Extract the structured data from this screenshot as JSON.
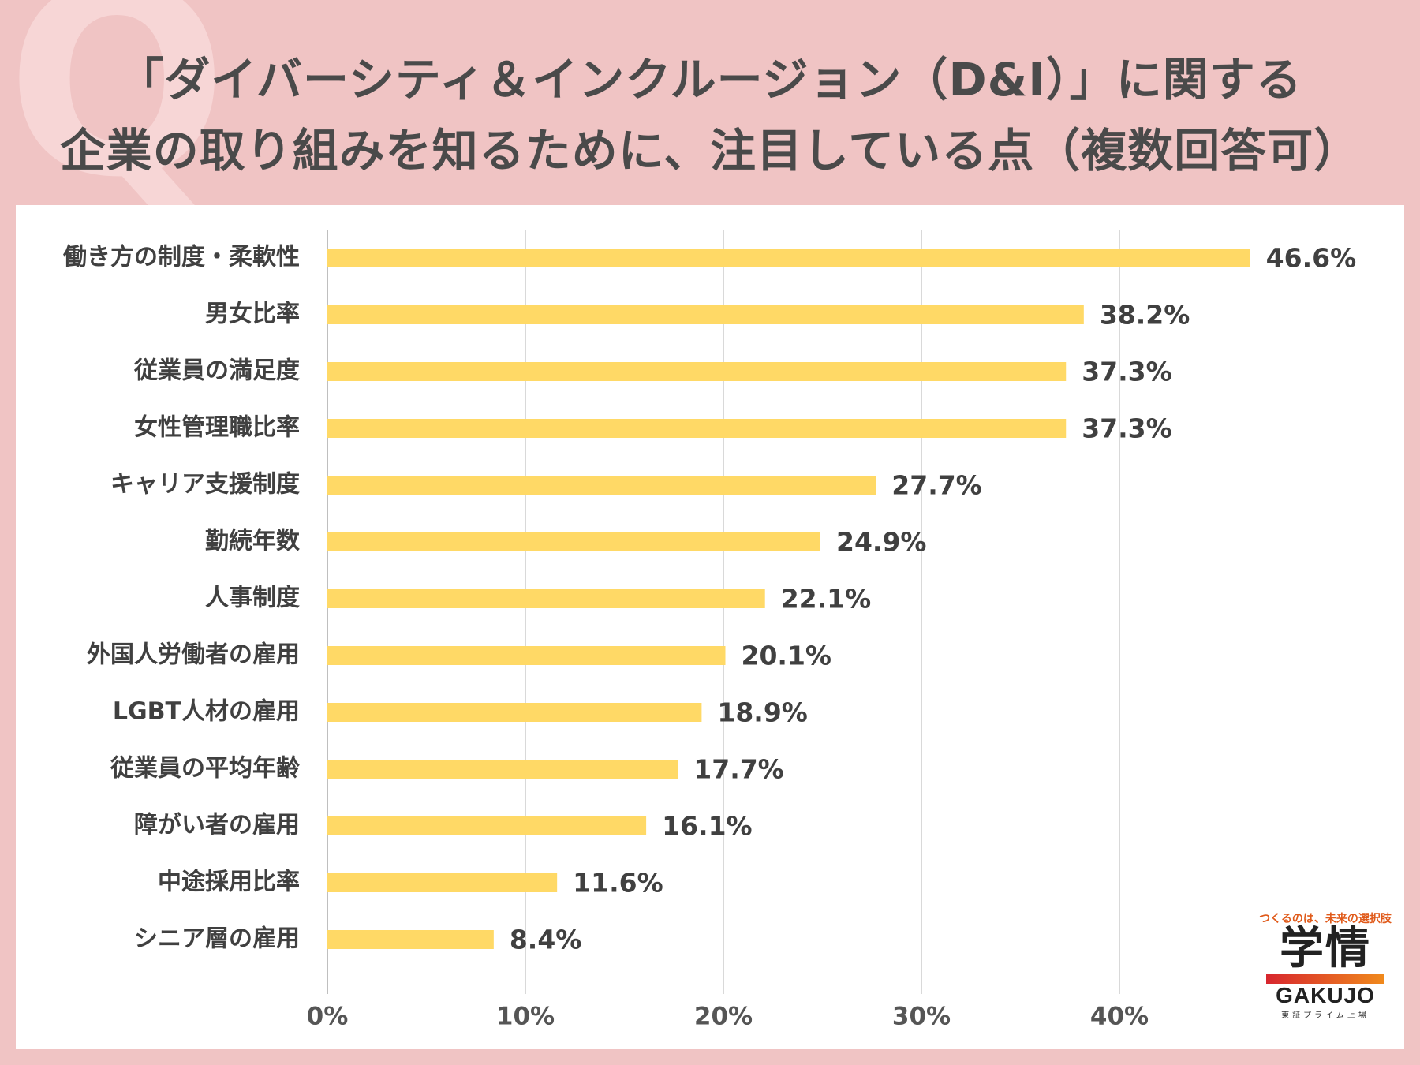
{
  "decoration": {
    "letter": "Q"
  },
  "title": {
    "line1": "「ダイバーシティ＆インクルージョン（D&I）」に関する",
    "line2": "企業の取り組みを知るために、注目している点（複数回答可）"
  },
  "chart_data": {
    "type": "bar",
    "orientation": "horizontal",
    "title": "「ダイバーシティ＆インクルージョン（D&I）」に関する企業の取り組みを知るために、注目している点（複数回答可）",
    "categories": [
      "働き方の制度・柔軟性",
      "男女比率",
      "従業員の満足度",
      "女性管理職比率",
      "キャリア支援制度",
      "勤続年数",
      "人事制度",
      "外国人労働者の雇用",
      "LGBT人材の雇用",
      "従業員の平均年齢",
      "障がい者の雇用",
      "中途採用比率",
      "シニア層の雇用"
    ],
    "values": [
      46.6,
      38.2,
      37.3,
      37.3,
      27.7,
      24.9,
      22.1,
      20.1,
      18.9,
      17.7,
      16.1,
      11.6,
      8.4
    ],
    "value_labels": [
      "46.6%",
      "38.2%",
      "37.3%",
      "37.3%",
      "27.7%",
      "24.9%",
      "22.1%",
      "20.1%",
      "18.9%",
      "17.7%",
      "16.1%",
      "11.6%",
      "8.4%"
    ],
    "xticks": [
      "0%",
      "10%",
      "20%",
      "30%",
      "40%"
    ],
    "xlim": [
      0,
      50
    ],
    "grid": true,
    "bar_color": "#ffd966"
  },
  "logo": {
    "tagline": "つくるのは、未来の選択肢",
    "name_ja": "学情",
    "name_en": "GAKUJO",
    "sub": "東証プライム上場"
  }
}
